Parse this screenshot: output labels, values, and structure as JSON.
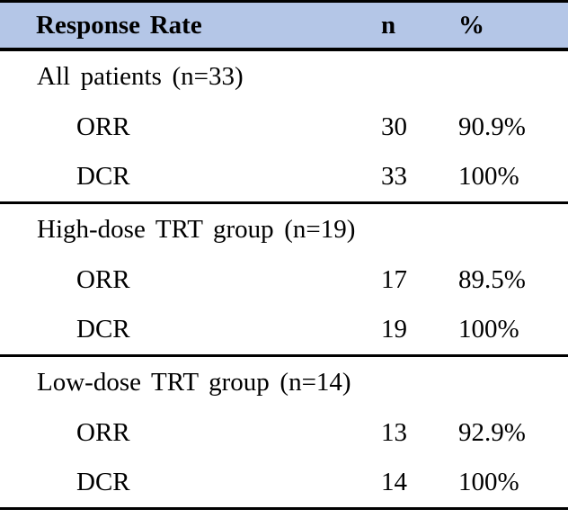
{
  "table": {
    "header": {
      "label": "Response Rate",
      "col_n": "n",
      "col_pct": "%"
    },
    "sections": [
      {
        "group": "All patients (n=33)",
        "rows": [
          {
            "label": "ORR",
            "n": "30",
            "pct": "90.9%"
          },
          {
            "label": "DCR",
            "n": "33",
            "pct": "100%"
          }
        ]
      },
      {
        "group": "High-dose TRT group (n=19)",
        "rows": [
          {
            "label": "ORR",
            "n": "17",
            "pct": "89.5%"
          },
          {
            "label": "DCR",
            "n": "19",
            "pct": "100%"
          }
        ]
      },
      {
        "group": "Low-dose TRT group (n=14)",
        "rows": [
          {
            "label": "ORR",
            "n": "13",
            "pct": "92.9%"
          },
          {
            "label": "DCR",
            "n": "14",
            "pct": "100%"
          }
        ]
      }
    ],
    "colors": {
      "header_bg": "#b4c6e7",
      "border": "#000000",
      "text": "#000000"
    }
  }
}
